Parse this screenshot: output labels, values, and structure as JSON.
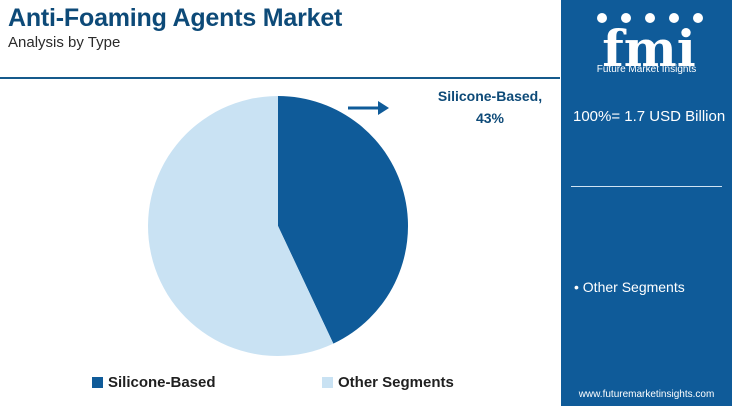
{
  "header": {
    "title": "Anti-Foaming Agents Market",
    "subtitle": "Analysis by Type"
  },
  "chart_data": {
    "type": "pie",
    "categories": [
      "Silicone-Based",
      "Other Segments"
    ],
    "values": [
      43,
      57
    ],
    "colors": [
      "#0f5b99",
      "#c9e2f3"
    ],
    "callout": {
      "line1": "Silicone-Based,",
      "line2": "43%"
    },
    "legend": [
      {
        "label": "Silicone-Based",
        "color": "#0f5b99"
      },
      {
        "label": "Other Segments",
        "color": "#c9e2f3"
      }
    ]
  },
  "panel": {
    "logo_text": "fmi",
    "logo_sub": "Future Market Insights",
    "total": "100%= 1.7 USD Billion",
    "segment_item": "• Other Segments",
    "url": "www.futuremarketinsights.com"
  }
}
